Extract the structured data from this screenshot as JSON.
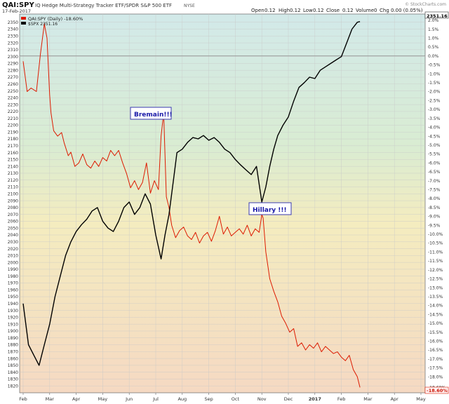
{
  "header": {
    "symbol": "QAI:SPY",
    "description": "IQ Hedge Multi-Strategy Tracker ETF/SPDR S&P 500 ETF",
    "exchange": "NYSE",
    "date": "17-Feb-2017",
    "open_label": "Open",
    "open_value": "0.12",
    "high_label": "High",
    "high_value": "0.12",
    "low_label": "Low",
    "low_value": "0.12",
    "close_label": "Close",
    "close_value": "0.12",
    "volume_label": "Volume",
    "volume_value": "0",
    "chg_label": "Chg",
    "chg_value": "0.00 (0.05%)",
    "watermark": "© StockCharts.com"
  },
  "legend": {
    "ratio": "QAI:SPY (Daily) -18.60%",
    "spx": "$SPX 2351.16"
  },
  "annotations": {
    "bremain": "Bremain!!!",
    "hillary": "Hillary !!!"
  },
  "chart_data": {
    "type": "line",
    "x_months": [
      "Feb",
      "Mar",
      "Apr",
      "May",
      "Jun",
      "Jul",
      "Aug",
      "Sep",
      "Oct",
      "Nov",
      "Dec",
      "2017",
      "Feb",
      "Mar",
      "Apr",
      "May"
    ],
    "left_axis": {
      "label": "$SPX",
      "ticks": [
        1820,
        1830,
        1840,
        1850,
        1860,
        1870,
        1880,
        1890,
        1900,
        1910,
        1920,
        1930,
        1940,
        1950,
        1960,
        1970,
        1980,
        1990,
        2000,
        2010,
        2020,
        2030,
        2040,
        2050,
        2060,
        2070,
        2080,
        2090,
        2100,
        2110,
        2120,
        2130,
        2140,
        2150,
        2160,
        2170,
        2180,
        2190,
        2200,
        2210,
        2220,
        2230,
        2240,
        2250,
        2260,
        2270,
        2280,
        2290,
        2300,
        2310,
        2320,
        2330,
        2340,
        2350
      ],
      "range": [
        1810,
        2362
      ]
    },
    "right_axis": {
      "label": "QAI:SPY % change",
      "ticks": [
        "2.0%",
        "1.5%",
        "1.0%",
        "0.5%",
        "0.0%",
        "-0.5%",
        "-1.0%",
        "-1.5%",
        "-2.0%",
        "-2.5%",
        "-3.0%",
        "-3.5%",
        "-4.0%",
        "-4.5%",
        "-5.0%",
        "-5.5%",
        "-6.0%",
        "-6.5%",
        "-7.0%",
        "-7.5%",
        "-8.0%",
        "-8.5%",
        "-9.0%",
        "-9.5%",
        "-10.0%",
        "-10.5%",
        "-11.0%",
        "-11.5%",
        "-12.0%",
        "-12.5%",
        "-13.0%",
        "-13.5%",
        "-14.0%",
        "-14.5%",
        "-15.0%",
        "-15.5%",
        "-16.0%",
        "-16.5%",
        "-17.0%",
        "-17.5%",
        "-18.0%",
        "-18.60%"
      ],
      "range": [
        -18.9,
        2.35
      ]
    },
    "current_spx": "2351.16",
    "current_ratio": "-18.60%",
    "series": [
      {
        "name": "QAI:SPY (Daily) -18.60%",
        "color": "#dd1a00",
        "axis": "right",
        "x": [
          0,
          0.15,
          0.3,
          0.5,
          0.65,
          0.8,
          0.9,
          1.0,
          1.05,
          1.15,
          1.3,
          1.45,
          1.55,
          1.7,
          1.8,
          1.95,
          2.1,
          2.25,
          2.4,
          2.55,
          2.7,
          2.85,
          3.0,
          3.15,
          3.3,
          3.45,
          3.6,
          3.75,
          3.9,
          4.05,
          4.2,
          4.35,
          4.5,
          4.65,
          4.8,
          4.95,
          5.1,
          5.2,
          5.3,
          5.4,
          5.5,
          5.6,
          5.75,
          5.9,
          6.05,
          6.2,
          6.35,
          6.5,
          6.65,
          6.8,
          6.95,
          7.1,
          7.25,
          7.4,
          7.55,
          7.7,
          7.85,
          8.0,
          8.15,
          8.3,
          8.45,
          8.6,
          8.75,
          8.9,
          9.0,
          9.05,
          9.15,
          9.3,
          9.45,
          9.6,
          9.75,
          9.9,
          10.05,
          10.2,
          10.35,
          10.5,
          10.65,
          10.8,
          10.95,
          11.1,
          11.25,
          11.4,
          11.55,
          11.7,
          11.85,
          12.0,
          12.15,
          12.3,
          12.45,
          12.6,
          12.7
        ],
        "y": [
          -0.3,
          -2.0,
          -1.8,
          -2.0,
          0.1,
          1.8,
          1.0,
          -2.2,
          -3.2,
          -4.2,
          -4.5,
          -4.3,
          -4.9,
          -5.6,
          -5.4,
          -6.2,
          -6.0,
          -5.5,
          -6.1,
          -6.3,
          -5.9,
          -6.2,
          -5.7,
          -5.9,
          -5.3,
          -5.6,
          -5.3,
          -6.0,
          -6.6,
          -7.4,
          -7.0,
          -7.5,
          -7.1,
          -6.0,
          -7.7,
          -7.0,
          -7.5,
          -4.5,
          -3.2,
          -7.9,
          -8.5,
          -9.5,
          -10.2,
          -9.8,
          -9.6,
          -10.1,
          -10.3,
          -9.9,
          -10.5,
          -10.1,
          -9.9,
          -10.4,
          -9.8,
          -9.0,
          -10.0,
          -9.6,
          -10.1,
          -9.9,
          -9.7,
          -10.0,
          -9.5,
          -10.1,
          -9.7,
          -9.9,
          -8.9,
          -9.1,
          -11.0,
          -12.5,
          -13.2,
          -13.8,
          -14.6,
          -15.0,
          -15.5,
          -15.3,
          -16.3,
          -16.1,
          -16.5,
          -16.2,
          -16.4,
          -16.1,
          -16.6,
          -16.3,
          -16.5,
          -16.7,
          -16.6,
          -16.9,
          -17.1,
          -16.8,
          -17.6,
          -18.0,
          -18.6
        ]
      },
      {
        "name": "$SPX 2351.16",
        "color": "#000000",
        "axis": "left",
        "x": [
          0,
          0.2,
          0.4,
          0.6,
          0.8,
          1.0,
          1.2,
          1.4,
          1.6,
          1.8,
          2.0,
          2.2,
          2.4,
          2.6,
          2.8,
          3.0,
          3.2,
          3.4,
          3.6,
          3.8,
          4.0,
          4.2,
          4.4,
          4.6,
          4.8,
          5.0,
          5.2,
          5.35,
          5.5,
          5.6,
          5.7,
          5.8,
          6.0,
          6.2,
          6.4,
          6.6,
          6.8,
          7.0,
          7.2,
          7.4,
          7.6,
          7.8,
          8.0,
          8.2,
          8.4,
          8.6,
          8.8,
          9.0,
          9.15,
          9.3,
          9.45,
          9.6,
          9.8,
          10.0,
          10.2,
          10.4,
          10.6,
          10.8,
          11.0,
          11.2,
          11.4,
          11.6,
          11.8,
          12.0,
          12.2,
          12.4,
          12.6,
          12.7
        ],
        "y": [
          1940,
          1880,
          1865,
          1850,
          1880,
          1910,
          1950,
          1980,
          2010,
          2030,
          2045,
          2055,
          2063,
          2075,
          2080,
          2060,
          2050,
          2045,
          2060,
          2080,
          2088,
          2070,
          2080,
          2100,
          2085,
          2040,
          2005,
          2040,
          2070,
          2100,
          2130,
          2160,
          2165,
          2175,
          2182,
          2180,
          2185,
          2178,
          2182,
          2175,
          2165,
          2160,
          2150,
          2142,
          2135,
          2128,
          2140,
          2088,
          2110,
          2140,
          2165,
          2185,
          2200,
          2212,
          2235,
          2255,
          2262,
          2270,
          2268,
          2280,
          2285,
          2290,
          2295,
          2300,
          2320,
          2340,
          2350,
          2351
        ]
      }
    ]
  }
}
